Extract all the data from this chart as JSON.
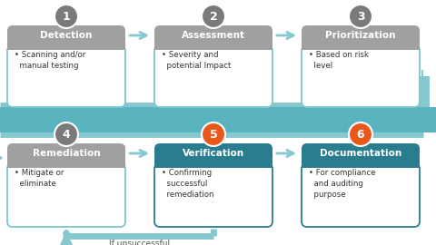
{
  "background_color": "#ffffff",
  "teal_band_color": "#5ab4c0",
  "teal_dark_color": "#2a7d8e",
  "gray_circle_color": "#7a7a7a",
  "orange_circle_color": "#e8581a",
  "arrow_color": "#85c8d0",
  "box_border_color": "#7dc5cc",
  "gray_header_color": "#a0a0a0",
  "steps": [
    {
      "num": "1",
      "title": "Detection",
      "body": "• Scanning and/or\n  manual testing",
      "highlight": false,
      "row": 0,
      "col": 0
    },
    {
      "num": "2",
      "title": "Assessment",
      "body": "• Severity and\n  potential Impact",
      "highlight": false,
      "row": 0,
      "col": 1
    },
    {
      "num": "3",
      "title": "Prioritization",
      "body": "• Based on risk\n  level",
      "highlight": false,
      "row": 0,
      "col": 2
    },
    {
      "num": "4",
      "title": "Remediation",
      "body": "• Mitigate or\n  eliminate",
      "highlight": false,
      "row": 1,
      "col": 0
    },
    {
      "num": "5",
      "title": "Verification",
      "body": "• Confirming\n  successful\n  remediation",
      "highlight": true,
      "row": 1,
      "col": 1
    },
    {
      "num": "6",
      "title": "Documentation",
      "body": "• For compliance\n  and auditing\n  purpose",
      "highlight": true,
      "row": 1,
      "col": 2
    }
  ],
  "if_unsuccessful_label": "If unsuccessful",
  "figw": 4.8,
  "figh": 2.7,
  "dpi": 100
}
